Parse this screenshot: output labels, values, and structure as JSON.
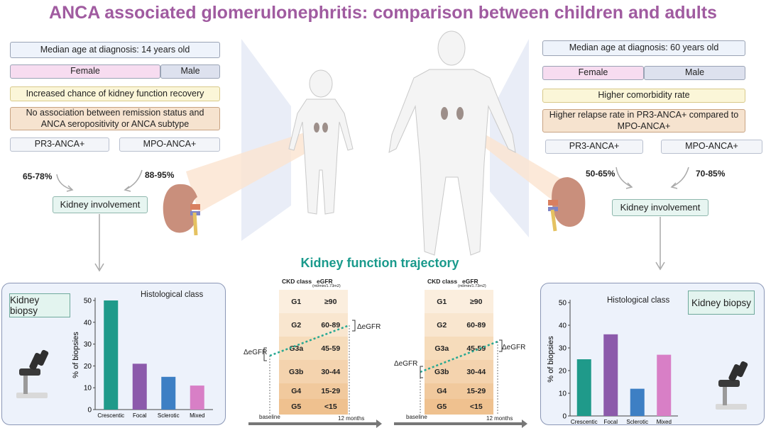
{
  "title": "ANCA associated glomerulonephritis: comparison between children and adults",
  "children": {
    "median_age": "Median age at diagnosis: 14 years old",
    "female": "Female",
    "male": "Male",
    "recovery": "Increased chance of kidney function recovery",
    "remission": "No association between remission status and ANCA seropositivity or ANCA subtype",
    "pr3": "PR3-ANCA+",
    "mpo": "MPO-ANCA+",
    "pr3_pct": "65-78%",
    "mpo_pct": "88-95%",
    "kidney_involvement": "Kidney involvement",
    "kidney_biopsy": "Kidney biopsy"
  },
  "adults": {
    "median_age": "Median age at diagnosis: 60 years old",
    "female": "Female",
    "male": "Male",
    "comorbidity": "Higher comorbidity rate",
    "relapse": "Higher relapse rate in PR3-ANCA+ compared to MPO-ANCA+",
    "pr3": "PR3-ANCA+",
    "mpo": "MPO-ANCA+",
    "pr3_pct": "50-65%",
    "mpo_pct": "70-85%",
    "kidney_involvement": "Kidney involvement",
    "kidney_biopsy": "Kidney biopsy"
  },
  "trajectory": {
    "title": "Kidney function trajectory",
    "col_class": "CKD class",
    "col_egfr": "eGFR",
    "col_egfr_unit": "(ml/min/1.73m2)",
    "rows": [
      {
        "cls": "G1",
        "range": "≥90"
      },
      {
        "cls": "G2",
        "range": "60-89"
      },
      {
        "cls": "G3a",
        "range": "45-59"
      },
      {
        "cls": "G3b",
        "range": "30-44"
      },
      {
        "cls": "G4",
        "range": "15-29"
      },
      {
        "cls": "G5",
        "range": "<15"
      }
    ],
    "delta_label": "ΔeGFR",
    "baseline": "baseline",
    "months": "12 months"
  },
  "chart_data": [
    {
      "type": "bar",
      "title": "Histological class",
      "ylabel": "% of biopsies",
      "categories": [
        "Crescentic",
        "Focal",
        "Sclerotic",
        "Mixed"
      ],
      "values": [
        50,
        21,
        15,
        11
      ],
      "ylim": [
        0,
        50
      ],
      "yticks": [
        0,
        10,
        20,
        30,
        40,
        50
      ],
      "colors": [
        "#1f9a8a",
        "#8c5aab",
        "#3d7fc4",
        "#d87fc6"
      ]
    },
    {
      "type": "bar",
      "title": "Histological class",
      "ylabel": "% of biopsies",
      "categories": [
        "Crescentic",
        "Focal",
        "Sclerotic",
        "Mixed"
      ],
      "values": [
        25,
        36,
        12,
        27
      ],
      "ylim": [
        0,
        50
      ],
      "yticks": [
        0,
        10,
        20,
        30,
        40,
        50
      ],
      "colors": [
        "#1f9a8a",
        "#8c5aab",
        "#3d7fc4",
        "#d87fc6"
      ]
    }
  ]
}
